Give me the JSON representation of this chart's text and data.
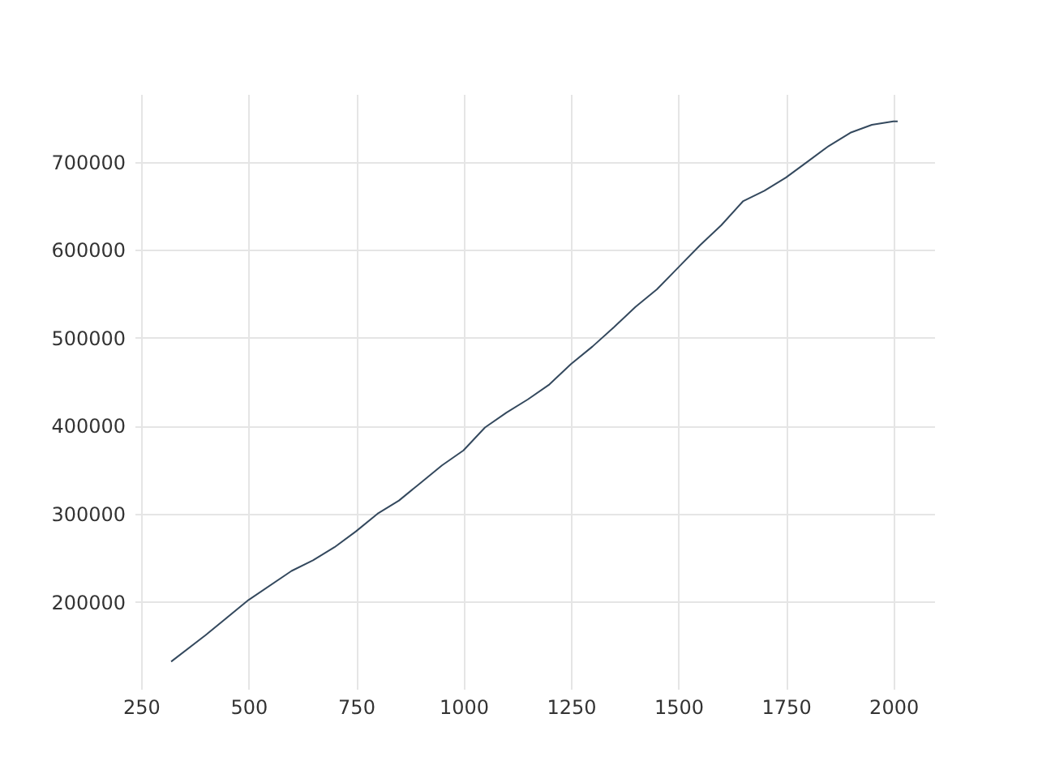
{
  "chart_data": {
    "type": "line",
    "x": [
      320,
      400,
      500,
      600,
      650,
      700,
      750,
      800,
      850,
      900,
      950,
      1000,
      1050,
      1100,
      1150,
      1200,
      1250,
      1300,
      1350,
      1400,
      1450,
      1500,
      1550,
      1600,
      1650,
      1700,
      1750,
      1800,
      1850,
      1900,
      1950,
      2000,
      2010
    ],
    "series": [
      {
        "color": "#34495e",
        "values": [
          132000,
          162000,
          202000,
          235000,
          247000,
          262000,
          280000,
          300000,
          315000,
          335000,
          355000,
          372000,
          398000,
          415000,
          430000,
          447000,
          470000,
          490000,
          512000,
          535000,
          555000,
          580000,
          605000,
          628000,
          655000,
          667000,
          682000,
          700000,
          718000,
          733000,
          742000,
          746000,
          746000
        ]
      }
    ],
    "xlim": [
      235,
      2095
    ],
    "ylim": [
      101000,
      777000
    ],
    "xticks": [
      250,
      500,
      750,
      1000,
      1250,
      1500,
      1750,
      2000
    ],
    "yticks": [
      200000,
      300000,
      400000,
      500000,
      600000,
      700000
    ],
    "grid": true
  }
}
